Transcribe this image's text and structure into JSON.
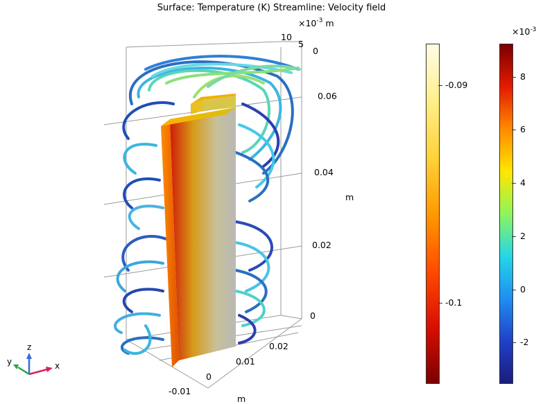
{
  "plot": {
    "title": "Surface: Temperature (K)  Streamline: Velocity field"
  },
  "axes3d": {
    "z_exponent_base": "×10",
    "z_exponent_power": "-3",
    "z_exponent_unit": "m",
    "top_y_ticks": [
      "10",
      "5",
      "0"
    ],
    "z_ticks": [
      "0.06",
      "0.04",
      "0.02",
      "0"
    ],
    "z_unit": "m",
    "x_ticks": [
      "0.02",
      "0.01",
      "0",
      "-0.01"
    ],
    "x_unit": "m"
  },
  "temperature_colorbar": {
    "ticks": [
      "-0.09",
      "-0.1"
    ],
    "colors": [
      "#fffde7",
      "#ffef8a",
      "#ffd23a",
      "#ff9a00",
      "#ff4c00",
      "#d90f00",
      "#7a0000"
    ]
  },
  "velocity_colorbar": {
    "exponent_base": "×10",
    "exponent_power": "-3",
    "ticks": [
      "8",
      "6",
      "4",
      "2",
      "0",
      "-2"
    ],
    "colors": [
      "#7a0000",
      "#e21b00",
      "#ff8a00",
      "#ffe600",
      "#8ef55b",
      "#25d6e8",
      "#1f8ff0",
      "#2040c8",
      "#1b1d7a"
    ]
  },
  "triad": {
    "x": "x",
    "y": "y",
    "z": "z"
  }
}
